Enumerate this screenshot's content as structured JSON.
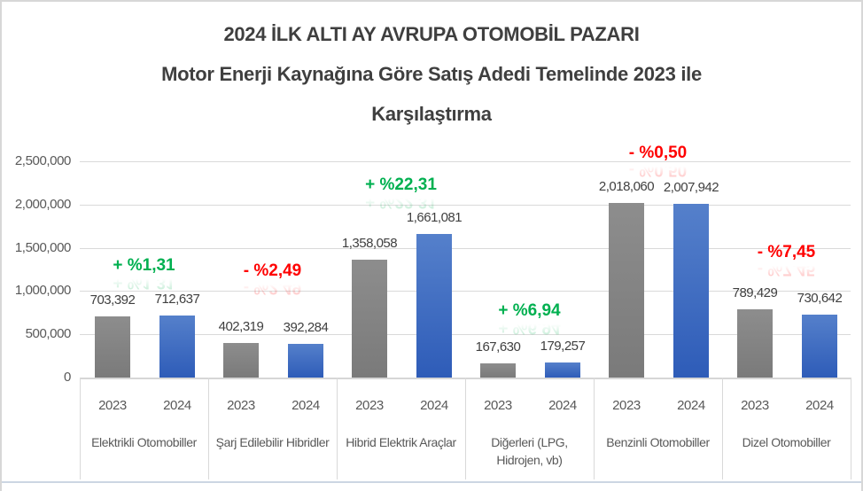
{
  "title": {
    "line1": "2024 İLK ALTI AY AVRUPA OTOMOBİL PAZARI",
    "line2": "Motor Enerji Kaynağına Göre Satış Adedi Temelinde 2023 ile",
    "line3": "Karşılaştırma"
  },
  "chart_data": {
    "type": "bar",
    "title": "2024 İLK ALTI AY AVRUPA OTOMOBİL PAZARI — Motor Enerji Kaynağına Göre Satış Adedi Temelinde 2023 ile Karşılaştırma",
    "categories": [
      "Elektrikli Otomobiller",
      "Şarj Edilebilir Hibridler",
      "Hibrid Elektrik Araçlar",
      "Diğerleri (LPG,\nHidrojen, vb)",
      "Benzinli Otomobiller",
      "Dizel Otomobiller"
    ],
    "x_series_labels": [
      "2023",
      "2024"
    ],
    "series": [
      {
        "name": "2023",
        "values": [
          703392,
          402319,
          1358058,
          167630,
          2018060,
          789429
        ],
        "labels": [
          "703,392",
          "402,319",
          "1,358,058",
          "167,630",
          "2,018,060",
          "789,429"
        ]
      },
      {
        "name": "2024",
        "values": [
          712637,
          392284,
          1661081,
          179257,
          2007942,
          730642
        ],
        "labels": [
          "712,637",
          "392,284",
          "1,661,081",
          "179,257",
          "2,007,942",
          "730,642"
        ]
      }
    ],
    "annotations": [
      {
        "text": "+ %1,31",
        "direction": "positive",
        "dy": 56
      },
      {
        "text": "- %2,49",
        "direction": "negative",
        "dy": 81
      },
      {
        "text": "+ %22,31",
        "direction": "positive",
        "dy": 55
      },
      {
        "text": "+ %6,94",
        "direction": "positive",
        "dy": 58
      },
      {
        "text": "- %0,50",
        "direction": "negative",
        "dy": 56
      },
      {
        "text": "- %7,45",
        "direction": "negative",
        "dy": 64
      }
    ],
    "y_ticks": {
      "labels": [
        "0",
        "500,000",
        "1,000,000",
        "1,500,000",
        "2,000,000",
        "2,500,000"
      ],
      "values": [
        0,
        500000,
        1000000,
        1500000,
        2000000,
        2500000
      ]
    },
    "ylim": [
      0,
      2500000
    ],
    "grid": true,
    "legend": "none"
  },
  "colors": {
    "bar_2023": "#808080",
    "bar_2024": "#4472C4",
    "positive": "#00B050",
    "negative": "#FF0000",
    "gridline": "#D9D9D9",
    "axis_text": "#595959",
    "value_text": "#3F3F3F",
    "title_text": "#3F3F3F"
  }
}
